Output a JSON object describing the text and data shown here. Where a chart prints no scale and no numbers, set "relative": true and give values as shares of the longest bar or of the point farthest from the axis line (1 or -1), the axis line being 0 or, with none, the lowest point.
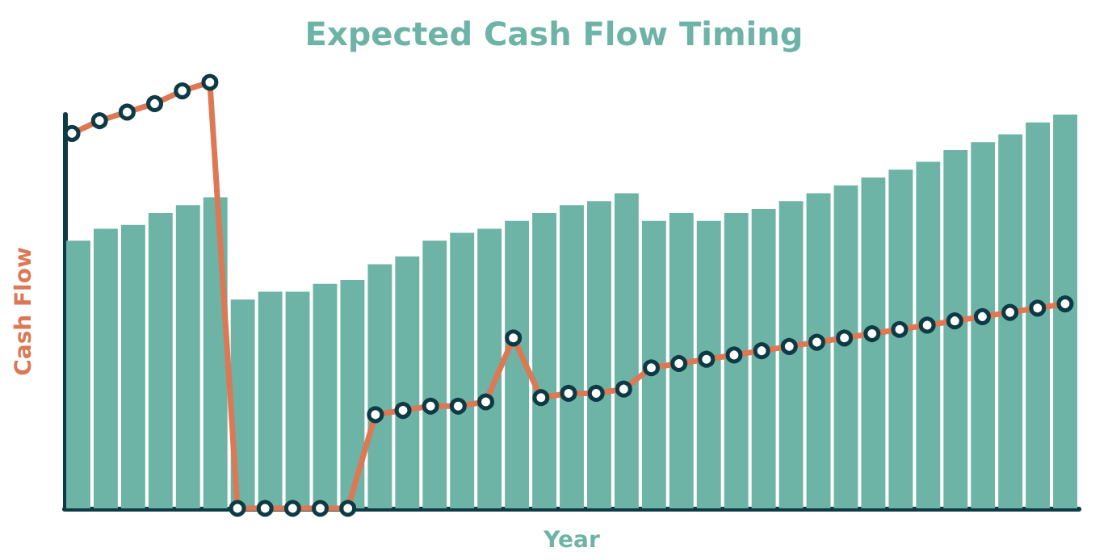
{
  "chart_data": [
    {
      "type": "bar",
      "title": "Expected Cash Flow Timing",
      "xlabel": "Year",
      "ylabel": "Cash Flow",
      "relative": true,
      "color": "#6db3a6",
      "categories": [
        null,
        null,
        null,
        null,
        null,
        null,
        null,
        null,
        null,
        null,
        null,
        null,
        null,
        null,
        null,
        null,
        null,
        null,
        null,
        null,
        null,
        null,
        null,
        null,
        null,
        null,
        null,
        null,
        null,
        null,
        null,
        null,
        null,
        null,
        null,
        null,
        null
      ],
      "values": [
        0.68,
        0.71,
        0.72,
        0.75,
        0.77,
        0.79,
        0.53,
        0.55,
        0.55,
        0.57,
        0.58,
        0.62,
        0.64,
        0.68,
        0.7,
        0.71,
        0.73,
        0.75,
        0.77,
        0.78,
        0.8,
        0.73,
        0.75,
        0.73,
        0.75,
        0.76,
        0.78,
        0.8,
        0.82,
        0.84,
        0.86,
        0.88,
        0.91,
        0.93,
        0.95,
        0.98,
        1
      ]
    },
    {
      "type": "line",
      "relative": true,
      "color": "#dd7855",
      "marker": "circle",
      "categories": [
        null,
        null,
        null,
        null,
        null,
        null,
        null,
        null,
        null,
        null,
        null,
        null,
        null,
        null,
        null,
        null,
        null,
        null,
        null,
        null,
        null,
        null,
        null,
        null,
        null,
        null,
        null,
        null,
        null,
        null,
        null,
        null,
        null,
        null,
        null,
        null,
        null
      ],
      "values": [
        0.88,
        0.91,
        0.93,
        0.95,
        0.98,
        1,
        0,
        0,
        0,
        0,
        0,
        0.22,
        0.23,
        0.24,
        0.24,
        0.25,
        0.4,
        0.26,
        0.27,
        0.27,
        0.28,
        0.33,
        0.34,
        0.35,
        0.36,
        0.37,
        0.38,
        0.39,
        0.4,
        0.41,
        0.42,
        0.43,
        0.44,
        0.45,
        0.46,
        0.47,
        0.48
      ]
    }
  ]
}
